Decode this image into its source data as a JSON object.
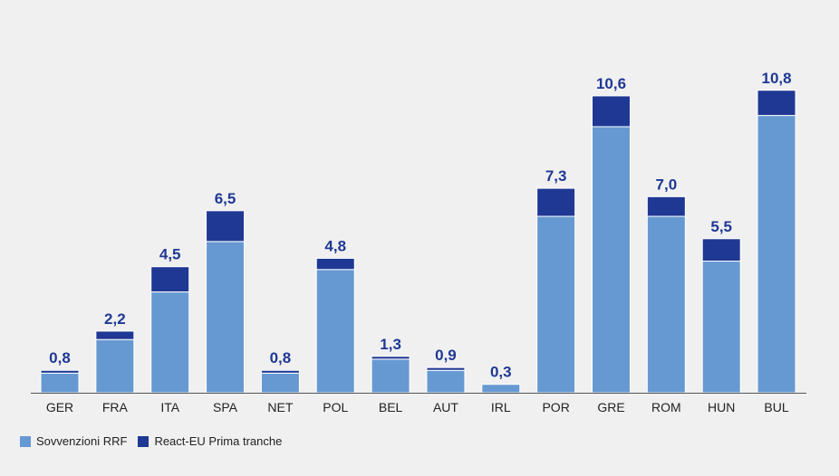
{
  "chart_data": {
    "type": "bar",
    "stacked": true,
    "categories": [
      "GER",
      "FRA",
      "ITA",
      "SPA",
      "NET",
      "POL",
      "BEL",
      "AUT",
      "IRL",
      "POR",
      "GRE",
      "ROM",
      "HUN",
      "BUL"
    ],
    "series": [
      {
        "name": "Sovvenzioni RRF",
        "color": "#6699d1",
        "values": [
          0.7,
          1.9,
          3.6,
          5.4,
          0.7,
          4.4,
          1.2,
          0.8,
          0.3,
          6.3,
          9.5,
          6.3,
          4.7,
          9.9
        ]
      },
      {
        "name": "React-EU Prima tranche",
        "color": "#1f3894",
        "values": [
          0.1,
          0.3,
          0.9,
          1.1,
          0.1,
          0.4,
          0.1,
          0.1,
          0.0,
          1.0,
          1.1,
          0.7,
          0.8,
          0.9
        ]
      }
    ],
    "totals_labels": [
      "0,8",
      "2,2",
      "4,5",
      "6,5",
      "0,8",
      "4,8",
      "1,3",
      "0,9",
      "0,3",
      "7,3",
      "10,6",
      "7,0",
      "5,5",
      "10,8"
    ],
    "totals": [
      0.8,
      2.2,
      4.5,
      6.5,
      0.8,
      4.8,
      1.3,
      0.9,
      0.3,
      7.3,
      10.6,
      7.0,
      5.5,
      10.8
    ],
    "ylim": [
      0,
      13.7
    ],
    "grid": false,
    "legend_position": "bottom-left",
    "label_color": "#1f3894"
  },
  "legend": {
    "items": [
      {
        "label": "Sovvenzioni RRF",
        "color": "#6699d1"
      },
      {
        "label": "React-EU Prima tranche",
        "color": "#1f3894"
      }
    ]
  }
}
